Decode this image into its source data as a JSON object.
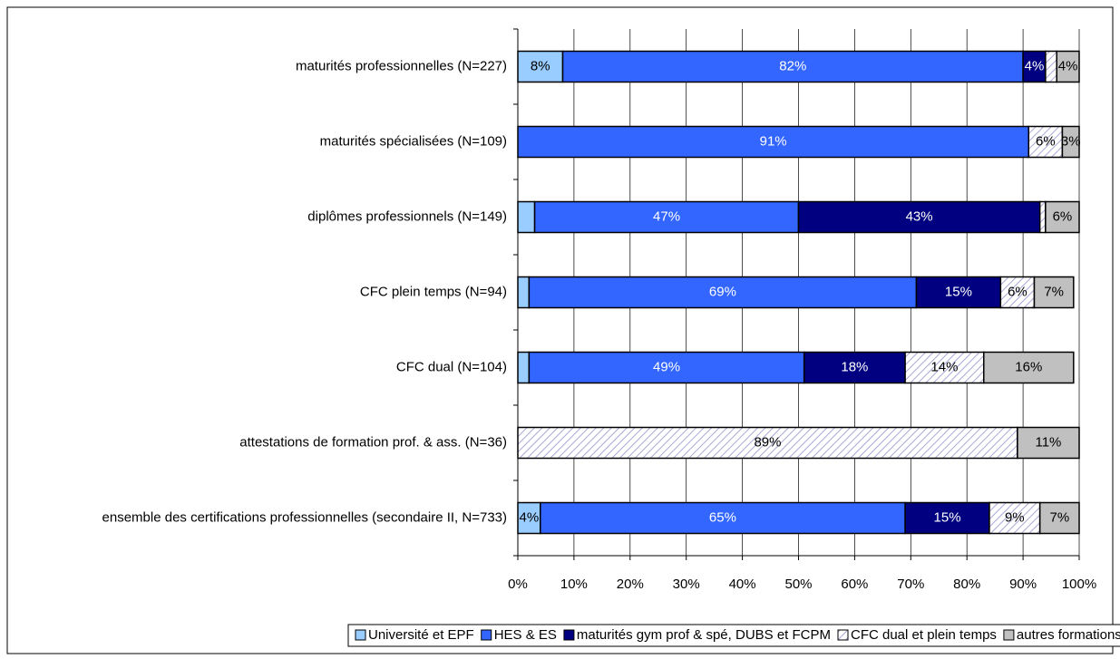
{
  "chart_data": {
    "type": "stacked-bar-horizontal",
    "categories": [
      "maturités professionnelles (N=227)",
      "maturités spécialisées (N=109)",
      "diplômes professionnels (N=149)",
      "CFC plein temps (N=94)",
      "CFC dual (N=104)",
      "attestations de formation prof. & ass. (N=36)",
      "ensemble des certifications professionnelles (secondaire II, N=733)"
    ],
    "series": [
      {
        "name": "Université et EPF",
        "color": "#99ccff",
        "values": [
          8,
          null,
          3,
          2,
          2,
          null,
          4
        ],
        "value_labels": [
          "8%",
          null,
          null,
          null,
          null,
          null,
          "4%"
        ]
      },
      {
        "name": "HES & ES",
        "color": "#3366ff",
        "values": [
          82,
          91,
          47,
          69,
          49,
          null,
          65
        ],
        "value_labels": [
          "82%",
          "91%",
          "47%",
          "69%",
          "49%",
          null,
          "65%"
        ]
      },
      {
        "name": "maturités gym prof & spé, DUBS et FCPM",
        "color": "#000080",
        "values": [
          4,
          null,
          43,
          15,
          18,
          null,
          15
        ],
        "value_labels": [
          "4%",
          null,
          "43%",
          "15%",
          "18%",
          null,
          "15%"
        ]
      },
      {
        "name": "CFC dual et plein temps",
        "color": "#c8c8e8",
        "values": [
          2,
          6,
          1,
          6,
          14,
          89,
          9
        ],
        "value_labels": [
          null,
          "6%",
          null,
          "6%",
          "14%",
          "89%",
          "9%"
        ]
      },
      {
        "name": "autres formations",
        "color": "#c0c0c0",
        "values": [
          4,
          3,
          6,
          7,
          16,
          11,
          7
        ],
        "value_labels": [
          "4%",
          "3%",
          "6%",
          "7%",
          "16%",
          "11%",
          "7%"
        ]
      }
    ],
    "xlim": [
      0,
      100
    ],
    "xticks": [
      {
        "value": 0,
        "label": "0%"
      },
      {
        "value": 10,
        "label": "10%"
      },
      {
        "value": 20,
        "label": "20%"
      },
      {
        "value": 30,
        "label": "30%"
      },
      {
        "value": 40,
        "label": "40%"
      },
      {
        "value": 50,
        "label": "50%"
      },
      {
        "value": 60,
        "label": "60%"
      },
      {
        "value": 70,
        "label": "70%"
      },
      {
        "value": 80,
        "label": "80%"
      },
      {
        "value": 90,
        "label": "90%"
      },
      {
        "value": 100,
        "label": "100%"
      }
    ],
    "grid": true,
    "legend": "bottom"
  }
}
